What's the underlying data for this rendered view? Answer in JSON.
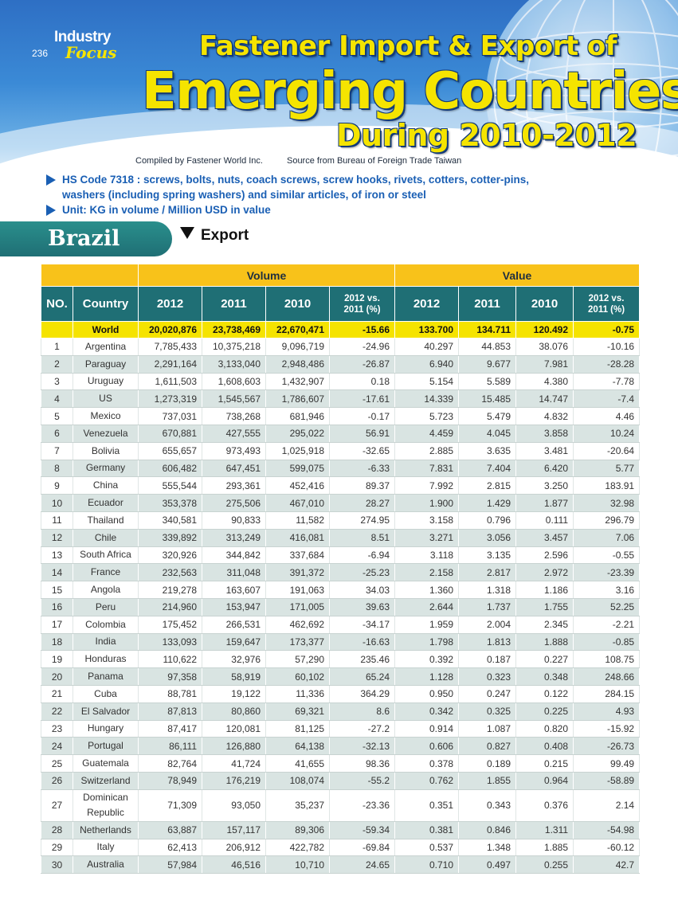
{
  "header": {
    "industry": "Industry",
    "focus": "Focus",
    "page_number": "236",
    "title_line1": "Fastener Import & Export of",
    "title_line2": "Emerging Countries",
    "title_line3": "During 2010-2012",
    "compiled_by": "Compiled by Fastener World Inc.",
    "source": "Source from Bureau of Foreign Trade Taiwan"
  },
  "info": {
    "hs_code": "HS Code 7318 : screws, bolts, nuts, coach screws, screw hooks, rivets, cotters, cotter-pins, washers (including spring  washers) and similar articles, of iron or steel",
    "unit": "Unit: KG in volume / Million USD in value"
  },
  "section": {
    "country": "Brazil",
    "direction": "Export"
  },
  "table": {
    "group_volume": "Volume",
    "group_value": "Value",
    "col_no": "NO.",
    "col_country": "Country",
    "col_2012": "2012",
    "col_2011": "2011",
    "col_2010": "2010",
    "col_change": "2012 vs. 2011 (%)",
    "world": {
      "country": "World",
      "v2012": "20,020,876",
      "v2011": "23,738,469",
      "v2010": "22,670,471",
      "vchg": "-15.66",
      "u2012": "133.700",
      "u2011": "134.711",
      "u2010": "120.492",
      "uchg": "-0.75"
    },
    "rows": [
      {
        "no": "1",
        "country": "Argentina",
        "v2012": "7,785,433",
        "v2011": "10,375,218",
        "v2010": "9,096,719",
        "vchg": "-24.96",
        "u2012": "40.297",
        "u2011": "44.853",
        "u2010": "38.076",
        "uchg": "-10.16"
      },
      {
        "no": "2",
        "country": "Paraguay",
        "v2012": "2,291,164",
        "v2011": "3,133,040",
        "v2010": "2,948,486",
        "vchg": "-26.87",
        "u2012": "6.940",
        "u2011": "9.677",
        "u2010": "7.981",
        "uchg": "-28.28"
      },
      {
        "no": "3",
        "country": "Uruguay",
        "v2012": "1,611,503",
        "v2011": "1,608,603",
        "v2010": "1,432,907",
        "vchg": "0.18",
        "u2012": "5.154",
        "u2011": "5.589",
        "u2010": "4.380",
        "uchg": "-7.78"
      },
      {
        "no": "4",
        "country": "US",
        "v2012": "1,273,319",
        "v2011": "1,545,567",
        "v2010": "1,786,607",
        "vchg": "-17.61",
        "u2012": "14.339",
        "u2011": "15.485",
        "u2010": "14.747",
        "uchg": "-7.4"
      },
      {
        "no": "5",
        "country": "Mexico",
        "v2012": "737,031",
        "v2011": "738,268",
        "v2010": "681,946",
        "vchg": "-0.17",
        "u2012": "5.723",
        "u2011": "5.479",
        "u2010": "4.832",
        "uchg": "4.46"
      },
      {
        "no": "6",
        "country": "Venezuela",
        "v2012": "670,881",
        "v2011": "427,555",
        "v2010": "295,022",
        "vchg": "56.91",
        "u2012": "4.459",
        "u2011": "4.045",
        "u2010": "3.858",
        "uchg": "10.24"
      },
      {
        "no": "7",
        "country": "Bolivia",
        "v2012": "655,657",
        "v2011": "973,493",
        "v2010": "1,025,918",
        "vchg": "-32.65",
        "u2012": "2.885",
        "u2011": "3.635",
        "u2010": "3.481",
        "uchg": "-20.64"
      },
      {
        "no": "8",
        "country": "Germany",
        "v2012": "606,482",
        "v2011": "647,451",
        "v2010": "599,075",
        "vchg": "-6.33",
        "u2012": "7.831",
        "u2011": "7.404",
        "u2010": "6.420",
        "uchg": "5.77"
      },
      {
        "no": "9",
        "country": "China",
        "v2012": "555,544",
        "v2011": "293,361",
        "v2010": "452,416",
        "vchg": "89.37",
        "u2012": "7.992",
        "u2011": "2.815",
        "u2010": "3.250",
        "uchg": "183.91"
      },
      {
        "no": "10",
        "country": "Ecuador",
        "v2012": "353,378",
        "v2011": "275,506",
        "v2010": "467,010",
        "vchg": "28.27",
        "u2012": "1.900",
        "u2011": "1.429",
        "u2010": "1.877",
        "uchg": "32.98"
      },
      {
        "no": "11",
        "country": "Thailand",
        "v2012": "340,581",
        "v2011": "90,833",
        "v2010": "11,582",
        "vchg": "274.95",
        "u2012": "3.158",
        "u2011": "0.796",
        "u2010": "0.111",
        "uchg": "296.79"
      },
      {
        "no": "12",
        "country": "Chile",
        "v2012": "339,892",
        "v2011": "313,249",
        "v2010": "416,081",
        "vchg": "8.51",
        "u2012": "3.271",
        "u2011": "3.056",
        "u2010": "3.457",
        "uchg": "7.06"
      },
      {
        "no": "13",
        "country": "South Africa",
        "v2012": "320,926",
        "v2011": "344,842",
        "v2010": "337,684",
        "vchg": "-6.94",
        "u2012": "3.118",
        "u2011": "3.135",
        "u2010": "2.596",
        "uchg": "-0.55"
      },
      {
        "no": "14",
        "country": "France",
        "v2012": "232,563",
        "v2011": "311,048",
        "v2010": "391,372",
        "vchg": "-25.23",
        "u2012": "2.158",
        "u2011": "2.817",
        "u2010": "2.972",
        "uchg": "-23.39"
      },
      {
        "no": "15",
        "country": "Angola",
        "v2012": "219,278",
        "v2011": "163,607",
        "v2010": "191,063",
        "vchg": "34.03",
        "u2012": "1.360",
        "u2011": "1.318",
        "u2010": "1.186",
        "uchg": "3.16"
      },
      {
        "no": "16",
        "country": "Peru",
        "v2012": "214,960",
        "v2011": "153,947",
        "v2010": "171,005",
        "vchg": "39.63",
        "u2012": "2.644",
        "u2011": "1.737",
        "u2010": "1.755",
        "uchg": "52.25"
      },
      {
        "no": "17",
        "country": "Colombia",
        "v2012": "175,452",
        "v2011": "266,531",
        "v2010": "462,692",
        "vchg": "-34.17",
        "u2012": "1.959",
        "u2011": "2.004",
        "u2010": "2.345",
        "uchg": "-2.21"
      },
      {
        "no": "18",
        "country": "India",
        "v2012": "133,093",
        "v2011": "159,647",
        "v2010": "173,377",
        "vchg": "-16.63",
        "u2012": "1.798",
        "u2011": "1.813",
        "u2010": "1.888",
        "uchg": "-0.85"
      },
      {
        "no": "19",
        "country": "Honduras",
        "v2012": "110,622",
        "v2011": "32,976",
        "v2010": "57,290",
        "vchg": "235.46",
        "u2012": "0.392",
        "u2011": "0.187",
        "u2010": "0.227",
        "uchg": "108.75"
      },
      {
        "no": "20",
        "country": "Panama",
        "v2012": "97,358",
        "v2011": "58,919",
        "v2010": "60,102",
        "vchg": "65.24",
        "u2012": "1.128",
        "u2011": "0.323",
        "u2010": "0.348",
        "uchg": "248.66"
      },
      {
        "no": "21",
        "country": "Cuba",
        "v2012": "88,781",
        "v2011": "19,122",
        "v2010": "11,336",
        "vchg": "364.29",
        "u2012": "0.950",
        "u2011": "0.247",
        "u2010": "0.122",
        "uchg": "284.15"
      },
      {
        "no": "22",
        "country": "El Salvador",
        "v2012": "87,813",
        "v2011": "80,860",
        "v2010": "69,321",
        "vchg": "8.6",
        "u2012": "0.342",
        "u2011": "0.325",
        "u2010": "0.225",
        "uchg": "4.93"
      },
      {
        "no": "23",
        "country": "Hungary",
        "v2012": "87,417",
        "v2011": "120,081",
        "v2010": "81,125",
        "vchg": "-27.2",
        "u2012": "0.914",
        "u2011": "1.087",
        "u2010": "0.820",
        "uchg": "-15.92"
      },
      {
        "no": "24",
        "country": "Portugal",
        "v2012": "86,111",
        "v2011": "126,880",
        "v2010": "64,138",
        "vchg": "-32.13",
        "u2012": "0.606",
        "u2011": "0.827",
        "u2010": "0.408",
        "uchg": "-26.73"
      },
      {
        "no": "25",
        "country": "Guatemala",
        "v2012": "82,764",
        "v2011": "41,724",
        "v2010": "41,655",
        "vchg": "98.36",
        "u2012": "0.378",
        "u2011": "0.189",
        "u2010": "0.215",
        "uchg": "99.49"
      },
      {
        "no": "26",
        "country": "Switzerland",
        "v2012": "78,949",
        "v2011": "176,219",
        "v2010": "108,074",
        "vchg": "-55.2",
        "u2012": "0.762",
        "u2011": "1.855",
        "u2010": "0.964",
        "uchg": "-58.89"
      },
      {
        "no": "27",
        "country": "Dominican Republic",
        "v2012": "71,309",
        "v2011": "93,050",
        "v2010": "35,237",
        "vchg": "-23.36",
        "u2012": "0.351",
        "u2011": "0.343",
        "u2010": "0.376",
        "uchg": "2.14"
      },
      {
        "no": "28",
        "country": "Netherlands",
        "v2012": "63,887",
        "v2011": "157,117",
        "v2010": "89,306",
        "vchg": "-59.34",
        "u2012": "0.381",
        "u2011": "0.846",
        "u2010": "1.311",
        "uchg": "-54.98"
      },
      {
        "no": "29",
        "country": "Italy",
        "v2012": "62,413",
        "v2011": "206,912",
        "v2010": "422,782",
        "vchg": "-69.84",
        "u2012": "0.537",
        "u2011": "1.348",
        "u2010": "1.885",
        "uchg": "-60.12"
      },
      {
        "no": "30",
        "country": "Australia",
        "v2012": "57,984",
        "v2011": "46,516",
        "v2010": "10,710",
        "vchg": "24.65",
        "u2012": "0.710",
        "u2011": "0.497",
        "u2010": "0.255",
        "uchg": "42.7"
      }
    ]
  }
}
